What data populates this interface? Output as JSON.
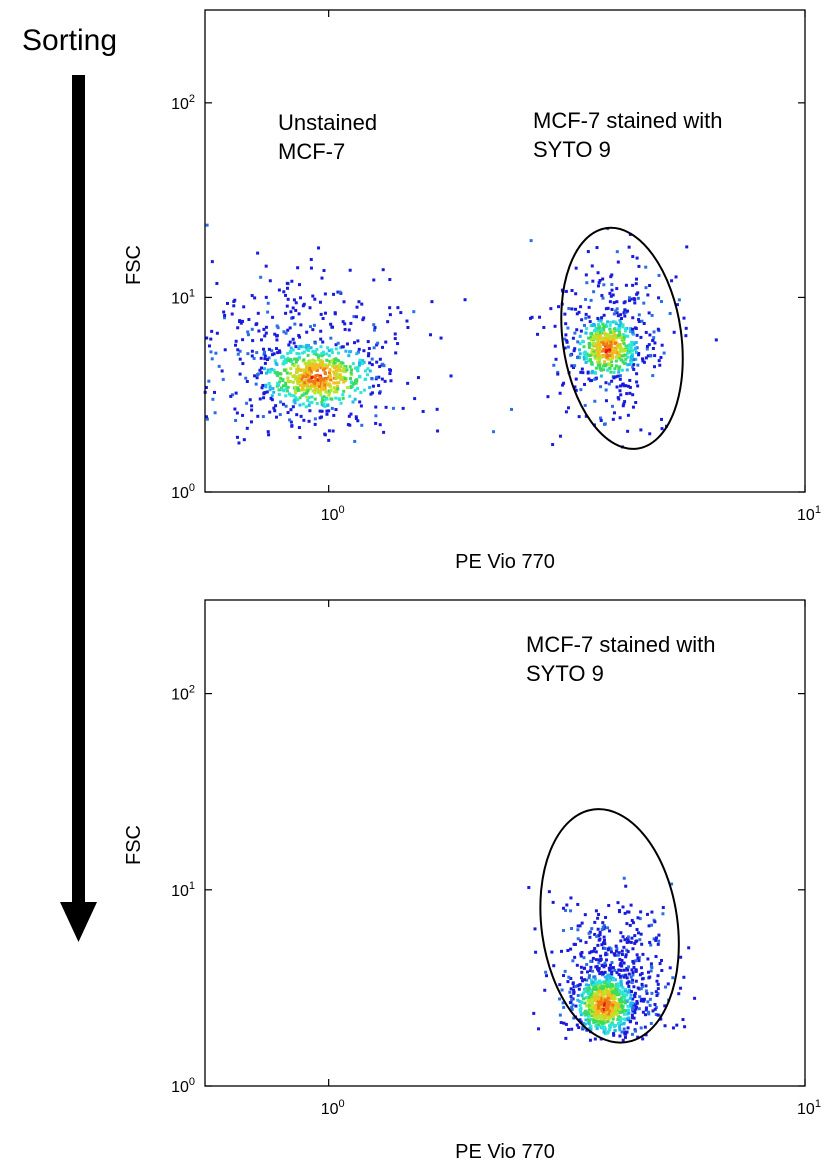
{
  "sorting_label": "Sorting",
  "colors": {
    "scale": [
      "#1a1adc",
      "#2a6ee6",
      "#22b6ee",
      "#2ce6d6",
      "#3cdc5a",
      "#b8e62a",
      "#f0c020",
      "#f07818",
      "#e81414"
    ],
    "axis": "#000000",
    "gate": "#000000"
  },
  "chart_data": [
    {
      "type": "scatter",
      "title": "",
      "xlabel": "PE Vio 770",
      "ylabel": "FSC",
      "x_scale": "log",
      "y_scale": "log",
      "xlim": [
        0.55,
        10
      ],
      "ylim": [
        1,
        300
      ],
      "x_ticks": [
        {
          "value": 1,
          "base": "10",
          "exp": "0"
        },
        {
          "value": 10,
          "base": "10",
          "exp": "1"
        }
      ],
      "y_ticks": [
        {
          "value": 1,
          "base": "10",
          "exp": "0"
        },
        {
          "value": 10,
          "base": "10",
          "exp": "1"
        },
        {
          "value": 100,
          "base": "10",
          "exp": "2"
        }
      ],
      "grid": false,
      "annotations": [
        {
          "lines": [
            "Unstained",
            "MCF-7"
          ]
        },
        {
          "lines": [
            "MCF-7 stained with",
            "SYTO 9"
          ]
        }
      ],
      "gate": {
        "shape": "ellipse",
        "center": [
          4.0,
          5.8
        ],
        "x_range": [
          3.1,
          5.5
        ],
        "y_range": [
          1.65,
          23
        ]
      },
      "populations": [
        {
          "label": "Unstained MCF-7",
          "n": 900,
          "center": [
            0.87,
            4.9
          ],
          "spread_log10": [
            0.12,
            0.22
          ],
          "density_peak": [
            0.95,
            3.9
          ]
        },
        {
          "label": "MCF-7 stained with SYTO 9",
          "n": 700,
          "center": [
            3.9,
            5.9
          ],
          "spread_log10": [
            0.065,
            0.2
          ],
          "density_peak": [
            3.85,
            5.5
          ]
        }
      ]
    },
    {
      "type": "scatter",
      "title": "",
      "xlabel": "PE Vio 770",
      "ylabel": "FSC",
      "x_scale": "log",
      "y_scale": "log",
      "xlim": [
        0.55,
        10
      ],
      "ylim": [
        1,
        300
      ],
      "x_ticks": [
        {
          "value": 1,
          "base": "10",
          "exp": "0"
        },
        {
          "value": 10,
          "base": "10",
          "exp": "1"
        }
      ],
      "y_ticks": [
        {
          "value": 1,
          "base": "10",
          "exp": "0"
        },
        {
          "value": 10,
          "base": "10",
          "exp": "1"
        },
        {
          "value": 100,
          "base": "10",
          "exp": "2"
        }
      ],
      "grid": false,
      "annotations": [
        {
          "lines": [
            "MCF-7 stained with",
            "SYTO 9"
          ]
        }
      ],
      "gate": {
        "shape": "ellipse",
        "center": [
          3.9,
          5.5
        ],
        "x_range": [
          2.8,
          5.4
        ],
        "y_range": [
          1.65,
          26
        ]
      },
      "populations": [
        {
          "label": "MCF-7 stained with SYTO 9",
          "n": 1100,
          "center": [
            3.95,
            3.4
          ],
          "spread_log10": [
            0.06,
            0.2
          ],
          "density_peak": [
            3.8,
            2.6
          ]
        }
      ]
    }
  ]
}
